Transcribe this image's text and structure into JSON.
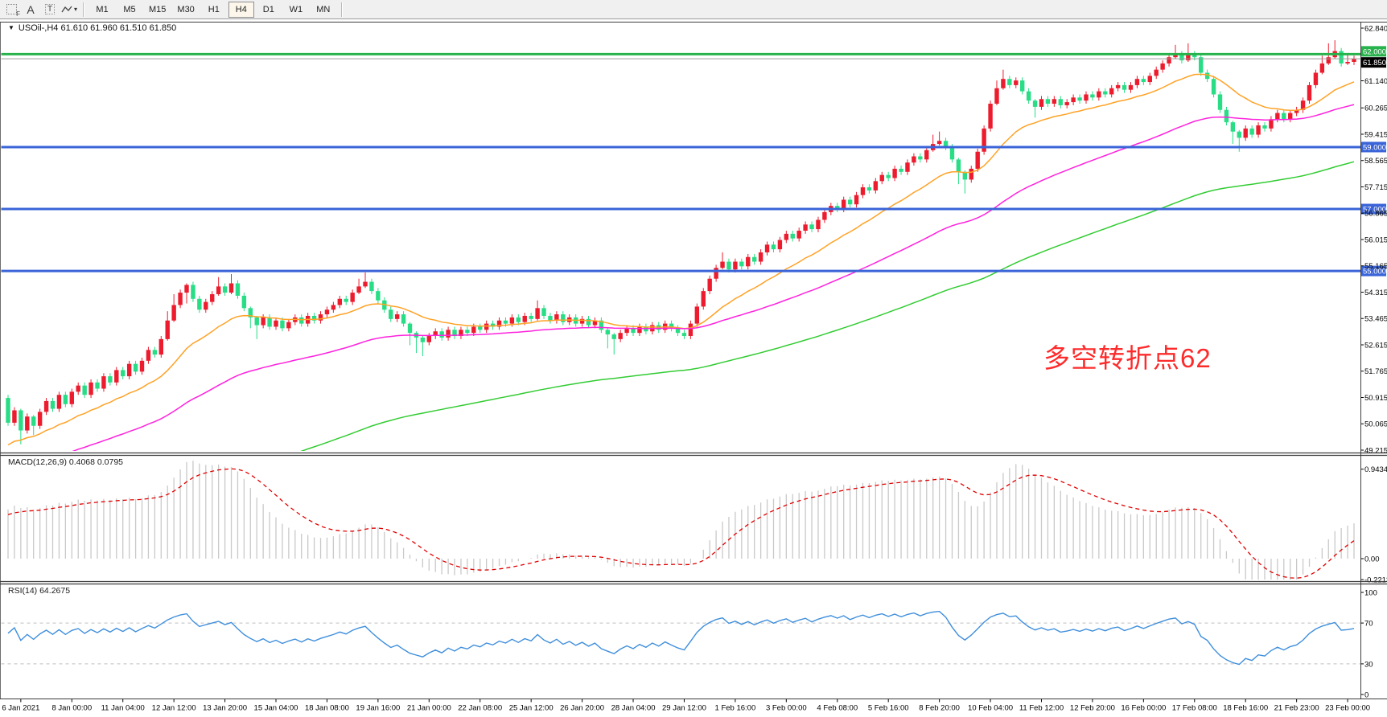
{
  "toolbar": {
    "tools": [
      {
        "id": "anchor-frame",
        "label": "F",
        "name": "docking-frame-icon"
      },
      {
        "id": "font-label",
        "label": "A",
        "name": "font-label-tool"
      },
      {
        "id": "text-box",
        "label": "T",
        "name": "text-box-tool"
      },
      {
        "id": "indicator-cursor",
        "label": "▾",
        "name": "arrow-style-dropdown"
      }
    ],
    "timeframes": [
      "M1",
      "M5",
      "M15",
      "M30",
      "H1",
      "H4",
      "D1",
      "W1",
      "MN"
    ],
    "active_timeframe": "H4"
  },
  "chart": {
    "symbol_line": "USOil-,H4 61.610 61.960 61.510 61.850",
    "macd_label": "MACD(12,26,9) 0.4068 0.0795",
    "rsi_label": "RSI(14) 64.2675",
    "annotation_text": "多空转折点62",
    "annotation_color": "#fe2b2b"
  },
  "chart_data": {
    "type": "candlestick",
    "symbol": "USOil-",
    "timeframe": "H4",
    "ohlc_line": {
      "open": 61.61,
      "high": 61.96,
      "low": 61.51,
      "close": 61.85
    },
    "price_axis_range": [
      62.84,
      49.215
    ],
    "price_axis_ticks": [
      "62.840",
      "61.140",
      "60.265",
      "59.415",
      "58.565",
      "57.715",
      "56.865",
      "56.015",
      "55.165",
      "54.315",
      "53.465",
      "52.615",
      "51.765",
      "50.915",
      "50.065",
      "49.215"
    ],
    "time_axis_labels": [
      "6 Jan 2021",
      "8 Jan 00:00",
      "11 Jan 04:00",
      "12 Jan 12:00",
      "13 Jan 20:00",
      "15 Jan 04:00",
      "18 Jan 08:00",
      "19 Jan 16:00",
      "21 Jan 00:00",
      "22 Jan 08:00",
      "25 Jan 12:00",
      "26 Jan 20:00",
      "28 Jan 04:00",
      "29 Jan 12:00",
      "1 Feb 16:00",
      "3 Feb 00:00",
      "4 Feb 08:00",
      "5 Feb 16:00",
      "8 Feb 20:00",
      "10 Feb 04:00",
      "11 Feb 12:00",
      "12 Feb 20:00",
      "16 Feb 00:00",
      "17 Feb 08:00",
      "18 Feb 16:00",
      "21 Feb 23:00",
      "23 Feb 00:00"
    ],
    "bars_per_label": 8,
    "first_label_bar": 2,
    "first_open": 50.9,
    "closes": [
      50.1,
      50.5,
      49.85,
      50.3,
      50.0,
      50.45,
      50.8,
      50.55,
      51.0,
      50.7,
      51.1,
      51.3,
      51.0,
      51.4,
      51.2,
      51.6,
      51.4,
      51.8,
      51.6,
      52.0,
      51.75,
      52.1,
      52.45,
      52.3,
      52.8,
      53.4,
      53.9,
      54.3,
      54.55,
      54.1,
      53.75,
      54.0,
      54.25,
      54.5,
      54.3,
      54.6,
      54.2,
      53.8,
      53.5,
      53.25,
      53.5,
      53.2,
      53.4,
      53.15,
      53.35,
      53.5,
      53.3,
      53.55,
      53.4,
      53.6,
      53.75,
      53.9,
      54.1,
      54.0,
      54.3,
      54.5,
      54.65,
      54.35,
      54.05,
      53.75,
      53.45,
      53.6,
      53.3,
      53.0,
      52.85,
      52.7,
      52.9,
      53.05,
      52.85,
      53.1,
      52.9,
      53.1,
      53.0,
      53.2,
      53.1,
      53.3,
      53.2,
      53.4,
      53.3,
      53.5,
      53.35,
      53.55,
      53.45,
      53.8,
      53.55,
      53.4,
      53.6,
      53.35,
      53.5,
      53.3,
      53.45,
      53.25,
      53.4,
      53.1,
      52.95,
      52.8,
      53.0,
      53.15,
      53.0,
      53.2,
      53.05,
      53.25,
      53.1,
      53.3,
      53.15,
      53.0,
      52.9,
      53.3,
      53.85,
      54.35,
      54.75,
      55.1,
      55.3,
      55.05,
      55.3,
      55.15,
      55.45,
      55.3,
      55.6,
      55.85,
      55.7,
      56.0,
      56.2,
      56.05,
      56.3,
      56.5,
      56.35,
      56.65,
      56.9,
      57.1,
      57.0,
      57.3,
      57.15,
      57.45,
      57.7,
      57.6,
      57.9,
      58.1,
      58.0,
      58.3,
      58.2,
      58.5,
      58.7,
      58.6,
      58.9,
      59.1,
      59.2,
      59.0,
      58.6,
      58.2,
      57.95,
      58.3,
      58.85,
      59.6,
      60.4,
      60.9,
      61.2,
      61.0,
      61.15,
      60.8,
      60.5,
      60.3,
      60.55,
      60.4,
      60.55,
      60.35,
      60.45,
      60.6,
      60.5,
      60.7,
      60.6,
      60.8,
      60.7,
      60.9,
      61.0,
      60.85,
      61.0,
      61.2,
      61.1,
      61.3,
      61.5,
      61.7,
      61.9,
      62.0,
      61.8,
      62.0,
      61.9,
      61.4,
      61.2,
      60.7,
      60.2,
      59.8,
      59.5,
      59.3,
      59.6,
      59.4,
      59.7,
      59.6,
      59.9,
      60.1,
      59.9,
      60.1,
      60.2,
      60.5,
      61.0,
      61.4,
      61.7,
      61.9,
      62.1,
      61.7,
      61.75,
      61.85
    ],
    "wick_default": 0.1,
    "wick_overrides": {
      "2": [
        0.05,
        0.45
      ],
      "4": [
        0.05,
        0.3
      ],
      "25": [
        0.3,
        0.05
      ],
      "26": [
        0.35,
        0.05
      ],
      "28": [
        0.05,
        0.35
      ],
      "33": [
        0.3,
        0.05
      ],
      "35": [
        0.3,
        0.05
      ],
      "38": [
        0.05,
        0.35
      ],
      "39": [
        0.05,
        0.45
      ],
      "55": [
        0.25,
        0.05
      ],
      "56": [
        0.3,
        0.05
      ],
      "63": [
        0.05,
        0.4
      ],
      "64": [
        0.05,
        0.5
      ],
      "65": [
        0.05,
        0.45
      ],
      "83": [
        0.25,
        0.05
      ],
      "94": [
        0.05,
        0.45
      ],
      "95": [
        0.05,
        0.5
      ],
      "112": [
        0.3,
        0.05
      ],
      "145": [
        0.3,
        0.05
      ],
      "146": [
        0.3,
        0.05
      ],
      "149": [
        0.05,
        0.4
      ],
      "150": [
        0.05,
        0.45
      ],
      "155": [
        0.25,
        0.05
      ],
      "156": [
        0.3,
        0.05
      ],
      "161": [
        0.05,
        0.35
      ],
      "183": [
        0.3,
        0.05
      ],
      "185": [
        0.35,
        0.05
      ],
      "192": [
        0.05,
        0.4
      ],
      "193": [
        0.05,
        0.45
      ],
      "206": [
        0.25,
        0.05
      ],
      "207": [
        0.45,
        0.05
      ],
      "208": [
        0.35,
        0.05
      ],
      "210": [
        0.25,
        0.05
      ]
    },
    "horizontal_lines": [
      {
        "price": 62.0,
        "tag": "62.000",
        "color": "#27b24b",
        "width": 3,
        "tag_bg": "#27b24b",
        "tag_pos": "above"
      },
      {
        "price": 61.85,
        "tag": "61.850",
        "color": "#9b9b9b",
        "width": 1,
        "tag_bg": "#000000",
        "tag_pos": "below"
      },
      {
        "price": 59.0,
        "tag": "59.000",
        "color": "#3a64d8",
        "width": 3,
        "tag_bg": "#3a64d8",
        "tag_pos": "center"
      },
      {
        "price": 57.0,
        "tag": "57.000",
        "color": "#3a64d8",
        "width": 3,
        "tag_bg": "#3a64d8",
        "tag_pos": "center"
      },
      {
        "price": 55.0,
        "tag": "55.000",
        "color": "#3a64d8",
        "width": 3,
        "tag_bg": "#3a64d8",
        "tag_pos": "center"
      }
    ],
    "moving_averages": [
      {
        "name": "ma-fast",
        "color": "#ffa226",
        "period": 18,
        "seed": 49.3
      },
      {
        "name": "ma-medium",
        "color": "#ff22dd",
        "period": 55,
        "seed": 48.5
      },
      {
        "name": "ma-slow",
        "color": "#33cc33",
        "period": 120,
        "seed": 45.0
      }
    ],
    "macd": {
      "label": "MACD(12,26,9)",
      "value": 0.4068,
      "signal_value": 0.0795,
      "axis_ticks": [
        "0.9434",
        "0.00",
        "-0.2213"
      ],
      "hist_color": "#c9c9c9",
      "signal_color": "#e00000",
      "seeds": {
        "ema12": 49.4,
        "ema26": 48.9,
        "signal": 0.45
      }
    },
    "rsi": {
      "label": "RSI(14)",
      "value": 64.2675,
      "axis_ticks": [
        "100",
        "70",
        "30",
        "0"
      ],
      "levels": [
        70,
        30
      ],
      "color": "#3f8fdc",
      "level_color": "#bfbfbf",
      "seeds": {
        "gain": 0.12,
        "loss": 0.08
      }
    },
    "colors": {
      "up": "#ec1c2e",
      "down": "#28dd86",
      "background": "#ffffff",
      "axis_text": "#000000",
      "panel_border": "#3c3c3c"
    }
  }
}
